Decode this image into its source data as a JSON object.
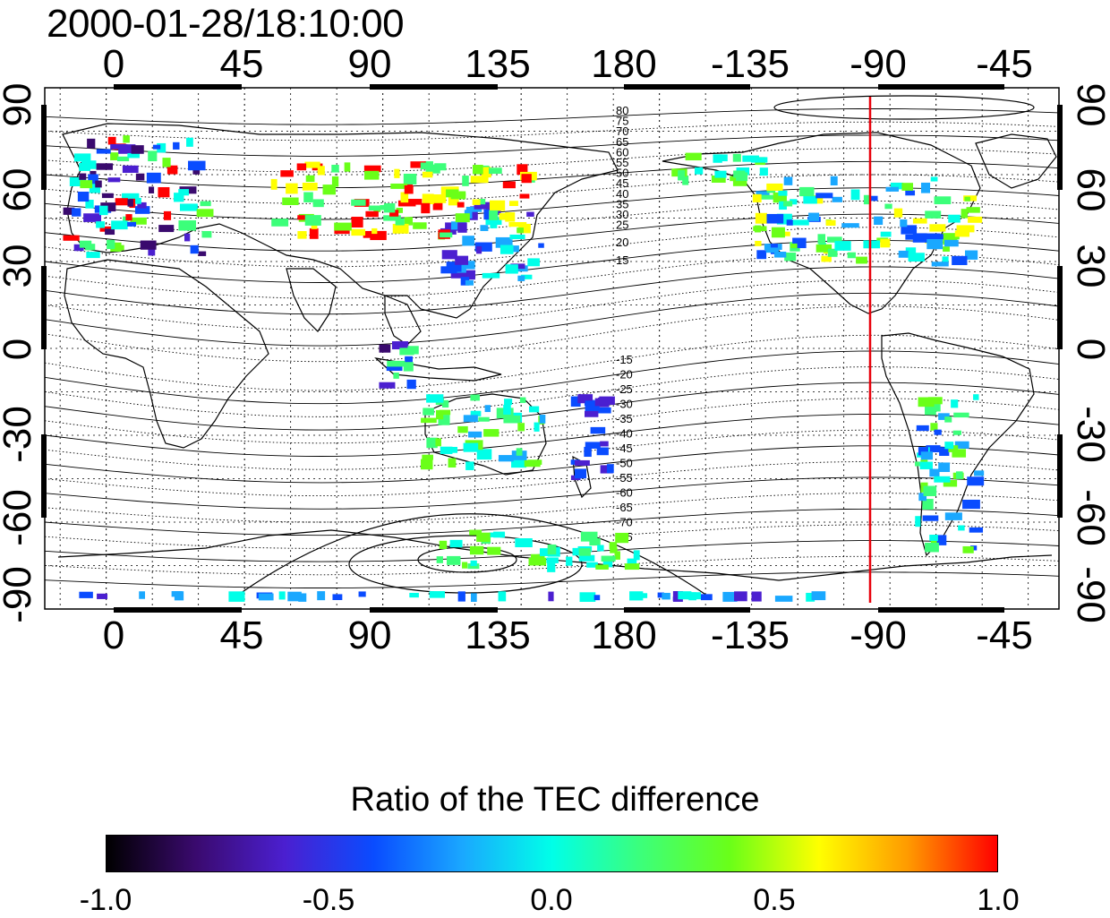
{
  "timestamp": "2000-01-28/18:10:00",
  "axes": {
    "top_ticks": [
      "0",
      "45",
      "90",
      "135",
      "180",
      "-135",
      "-90",
      "-45"
    ],
    "bottom_ticks": [
      "0",
      "45",
      "90",
      "135",
      "180",
      "-135",
      "-90",
      "-45"
    ],
    "left_ticks": [
      "90",
      "60",
      "30",
      "0",
      "-30",
      "-60",
      "-90"
    ],
    "right_ticks": [
      "90",
      "60",
      "30",
      "0",
      "-30",
      "-60",
      "-90"
    ],
    "lon_range": [
      -20,
      310
    ],
    "lat_range": [
      -90,
      90
    ],
    "grid": true
  },
  "contour_labels": {
    "north": [
      "80",
      "75",
      "70",
      "65",
      "60",
      "55",
      "50",
      "45",
      "40",
      "35",
      "30",
      "25",
      "20",
      "15"
    ],
    "south": [
      "-15",
      "-20",
      "-25",
      "-30",
      "-35",
      "-40",
      "-45",
      "-50",
      "-55",
      "-60",
      "-65",
      "-70",
      "-75"
    ]
  },
  "marker_line": {
    "longitude": -93,
    "color": "#e8000b"
  },
  "colorbar": {
    "title": "Ratio of the TEC difference",
    "ticks": [
      "-1.0",
      "-0.5",
      "0.0",
      "0.5",
      "1.0"
    ],
    "range": [
      -1.0,
      1.0
    ],
    "colors": [
      "#000000",
      "#3a0a6e",
      "#4b1fd0",
      "#0a4cff",
      "#1aa8ff",
      "#00ffe8",
      "#3cff7a",
      "#6aff18",
      "#ffff00",
      "#ff9a00",
      "#ff0000"
    ]
  }
}
